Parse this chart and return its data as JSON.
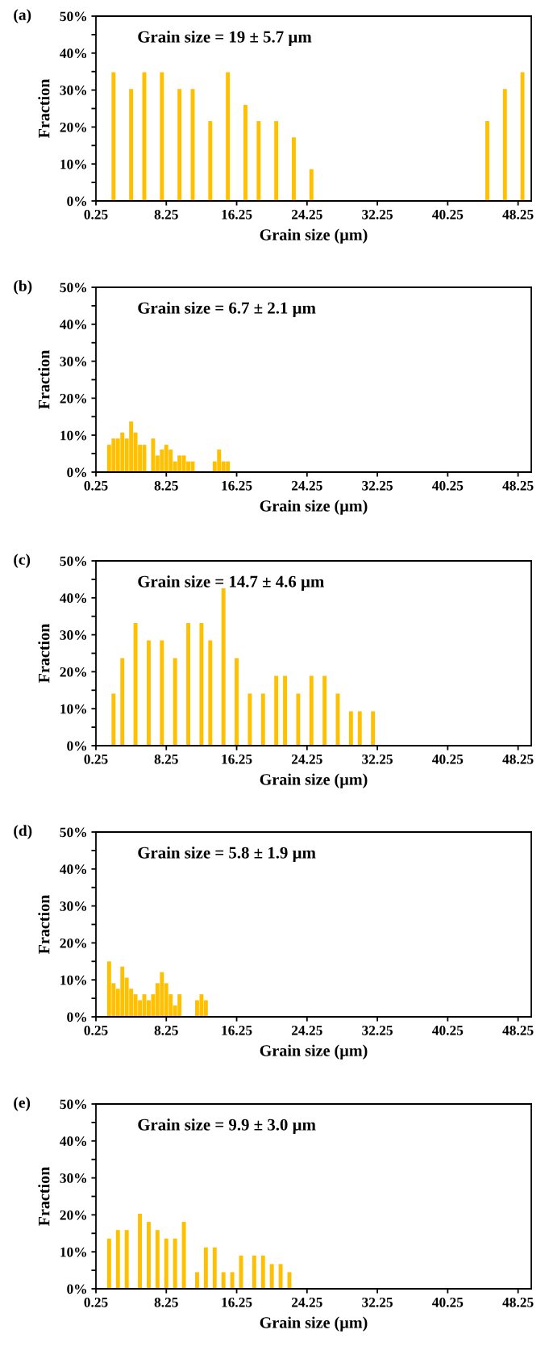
{
  "chart_data": [
    {
      "type": "bar",
      "title": "(a)",
      "xlabel": "Grain size (µm)",
      "ylabel": "Fraction",
      "annotations": [
        "Grain size = 19 ± 5.7 µm"
      ],
      "color": "#ffc000",
      "x": [
        2.25,
        4.25,
        5.75,
        7.75,
        9.75,
        11.25,
        13.25,
        15.25,
        17.25,
        18.75,
        20.75,
        22.75,
        24.75,
        44.75,
        46.75,
        48.75
      ],
      "values": [
        34.8,
        30.3,
        34.8,
        34.8,
        30.3,
        30.3,
        21.6,
        34.8,
        26.0,
        21.6,
        21.6,
        17.2,
        8.6,
        21.6,
        30.3,
        34.8
      ],
      "xlim": [
        0.25,
        49.75
      ],
      "xticks": [
        0.25,
        8.25,
        16.25,
        24.25,
        32.25,
        40.25,
        48.25
      ],
      "ylim": [
        0,
        50
      ],
      "yticks": [
        {
          "value": 0,
          "label": "0%"
        },
        {
          "value": 5,
          "label": null
        },
        {
          "value": 10,
          "label": "10%"
        },
        {
          "value": 15,
          "label": null
        },
        {
          "value": 20,
          "label": "20%"
        },
        {
          "value": 25,
          "label": null
        },
        {
          "value": 30,
          "label": "30%"
        },
        {
          "value": 35,
          "label": null
        },
        {
          "value": 40,
          "label": "40%"
        },
        {
          "value": 45,
          "label": null
        },
        {
          "value": 50,
          "label": "50%"
        }
      ],
      "grid": false,
      "legend": false
    },
    {
      "type": "bar",
      "title": "(b)",
      "xlabel": "Grain size (µm)",
      "ylabel": "Fraction",
      "annotations": [
        "Grain size = 6.7 ± 2.1 µm"
      ],
      "color": "#ffc000",
      "x": [
        1.75,
        2.25,
        2.75,
        3.25,
        3.75,
        4.25,
        4.75,
        5.25,
        5.75,
        6.75,
        7.25,
        7.75,
        8.25,
        8.75,
        9.25,
        9.75,
        10.25,
        10.75,
        11.25,
        13.75,
        14.25,
        14.75,
        15.25
      ],
      "values": [
        7.4,
        9.1,
        9.1,
        10.7,
        9.1,
        13.7,
        10.7,
        7.4,
        7.4,
        9.1,
        4.5,
        6.1,
        7.4,
        6.1,
        2.9,
        4.5,
        4.5,
        2.9,
        2.9,
        2.9,
        6.1,
        2.9,
        2.9
      ],
      "xlim": [
        0.25,
        49.75
      ],
      "xticks": [
        0.25,
        8.25,
        16.25,
        24.25,
        32.25,
        40.25,
        48.25
      ],
      "ylim": [
        0,
        50
      ],
      "yticks": [
        {
          "value": 0,
          "label": "0%"
        },
        {
          "value": 5,
          "label": null
        },
        {
          "value": 10,
          "label": "10%"
        },
        {
          "value": 15,
          "label": null
        },
        {
          "value": 20,
          "label": "20%"
        },
        {
          "value": 25,
          "label": null
        },
        {
          "value": 30,
          "label": "30%"
        },
        {
          "value": 35,
          "label": null
        },
        {
          "value": 40,
          "label": "40%"
        },
        {
          "value": 45,
          "label": null
        },
        {
          "value": 50,
          "label": "50%"
        }
      ],
      "grid": false,
      "legend": false
    },
    {
      "type": "bar",
      "title": "(c)",
      "xlabel": "Grain size (µm)",
      "ylabel": "Fraction",
      "annotations": [
        "Grain size = 14.7 ± 4.6 µm"
      ],
      "color": "#ffc000",
      "x": [
        2.25,
        3.25,
        4.75,
        6.25,
        7.75,
        9.25,
        10.75,
        12.25,
        13.25,
        14.75,
        16.25,
        17.75,
        19.25,
        20.75,
        21.75,
        23.25,
        24.75,
        26.25,
        27.75,
        29.25,
        30.25,
        31.75
      ],
      "values": [
        14.1,
        23.7,
        33.2,
        28.5,
        28.5,
        23.7,
        33.2,
        33.2,
        28.5,
        42.6,
        23.7,
        14.1,
        14.1,
        18.9,
        18.9,
        14.1,
        18.9,
        18.9,
        14.1,
        9.3,
        9.3,
        9.3
      ],
      "xlim": [
        0.25,
        49.75
      ],
      "xticks": [
        0.25,
        8.25,
        16.25,
        24.25,
        32.25,
        40.25,
        48.25
      ],
      "ylim": [
        0,
        50
      ],
      "yticks": [
        {
          "value": 0,
          "label": "0%"
        },
        {
          "value": 5,
          "label": null
        },
        {
          "value": 10,
          "label": "10%"
        },
        {
          "value": 15,
          "label": null
        },
        {
          "value": 20,
          "label": "20%"
        },
        {
          "value": 25,
          "label": null
        },
        {
          "value": 30,
          "label": "30%"
        },
        {
          "value": 35,
          "label": null
        },
        {
          "value": 40,
          "label": "40%"
        },
        {
          "value": 45,
          "label": null
        },
        {
          "value": 50,
          "label": "50%"
        }
      ],
      "grid": false,
      "legend": false
    },
    {
      "type": "bar",
      "title": "(d)",
      "xlabel": "Grain size (µm)",
      "ylabel": "Fraction",
      "annotations": [
        "Grain size = 5.8 ± 1.9 µm"
      ],
      "color": "#ffc000",
      "x": [
        1.75,
        2.25,
        2.75,
        3.25,
        3.75,
        4.25,
        4.75,
        5.25,
        5.75,
        6.25,
        6.75,
        7.25,
        7.75,
        8.25,
        8.75,
        9.25,
        9.75,
        11.75,
        12.25,
        12.75
      ],
      "values": [
        15.0,
        9.1,
        7.6,
        13.6,
        10.6,
        7.6,
        6.1,
        4.5,
        6.1,
        4.5,
        6.1,
        9.1,
        12.1,
        9.1,
        6.1,
        3.1,
        6.1,
        4.5,
        6.1,
        4.5
      ],
      "xlim": [
        0.25,
        49.75
      ],
      "xticks": [
        0.25,
        8.25,
        16.25,
        24.25,
        32.25,
        40.25,
        48.25
      ],
      "ylim": [
        0,
        50
      ],
      "yticks": [
        {
          "value": 0,
          "label": "0%"
        },
        {
          "value": 5,
          "label": null
        },
        {
          "value": 10,
          "label": "10%"
        },
        {
          "value": 15,
          "label": null
        },
        {
          "value": 20,
          "label": "20%"
        },
        {
          "value": 25,
          "label": null
        },
        {
          "value": 30,
          "label": "30%"
        },
        {
          "value": 35,
          "label": null
        },
        {
          "value": 40,
          "label": "40%"
        },
        {
          "value": 45,
          "label": null
        },
        {
          "value": 50,
          "label": "50%"
        }
      ],
      "grid": false,
      "legend": false
    },
    {
      "type": "bar",
      "title": "(e)",
      "xlabel": "Grain size (µm)",
      "ylabel": "Fraction",
      "annotations": [
        "Grain size = 9.9 ± 3.0 µm"
      ],
      "color": "#ffc000",
      "x": [
        1.75,
        2.75,
        3.75,
        5.25,
        6.25,
        7.25,
        8.25,
        9.25,
        10.25,
        11.75,
        12.75,
        13.75,
        14.75,
        15.75,
        16.75,
        18.25,
        19.25,
        20.25,
        21.25,
        22.25
      ],
      "values": [
        13.6,
        15.9,
        15.9,
        20.3,
        18.1,
        15.9,
        13.6,
        13.6,
        18.1,
        4.5,
        11.2,
        11.2,
        4.5,
        4.5,
        9.0,
        9.0,
        9.0,
        6.7,
        6.7,
        4.5
      ],
      "xlim": [
        0.25,
        49.75
      ],
      "xticks": [
        0.25,
        8.25,
        16.25,
        24.25,
        32.25,
        40.25,
        48.25
      ],
      "ylim": [
        0,
        50
      ],
      "yticks": [
        {
          "value": 0,
          "label": "0%"
        },
        {
          "value": 5,
          "label": null
        },
        {
          "value": 10,
          "label": "10%"
        },
        {
          "value": 15,
          "label": null
        },
        {
          "value": 20,
          "label": "20%"
        },
        {
          "value": 25,
          "label": null
        },
        {
          "value": 30,
          "label": "30%"
        },
        {
          "value": 35,
          "label": null
        },
        {
          "value": 40,
          "label": "40%"
        },
        {
          "value": 45,
          "label": null
        },
        {
          "value": 50,
          "label": "50%"
        }
      ],
      "grid": false,
      "legend": false
    }
  ]
}
